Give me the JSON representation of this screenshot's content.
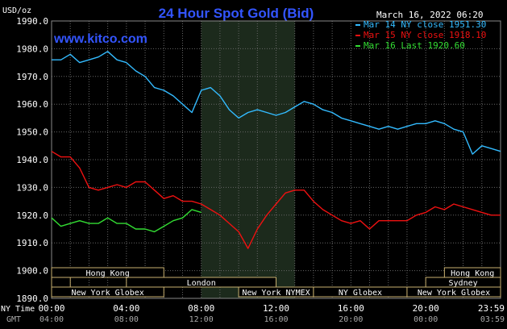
{
  "chart_data": {
    "type": "line",
    "title": "24 Hour Spot Gold (Bid)",
    "watermark": "www.kitco.com",
    "timestamp": "March 16, 2022 06:20",
    "y_unit": "USD/oz",
    "ylim": [
      1890,
      1990
    ],
    "y_ticks": [
      "1990.0",
      "1980.0",
      "1970.0",
      "1960.0",
      "1950.0",
      "1940.0",
      "1930.0",
      "1920.0",
      "1910.0",
      "1900.0",
      "1890.0"
    ],
    "x_row_label_ny": "NY Time",
    "x_row_label_gmt": "GMT",
    "ny_time_ticks": [
      "00:00",
      "04:00",
      "08:00",
      "12:00",
      "16:00",
      "20:00",
      "23:59"
    ],
    "gmt_ticks": [
      "04:00",
      "08:00",
      "12:00",
      "16:00",
      "20:00",
      "00:00",
      "03:59"
    ],
    "grid": true,
    "legend_position": "top-right",
    "colors": {
      "background": "#000000",
      "title": "#3355ff",
      "watermark": "#3355ff",
      "axis_text": "#ffffff",
      "grid": "#666666",
      "shade": "#1c2a1c",
      "session_text": "#ffffff",
      "session_border": "#c8b070"
    },
    "x_hours": [
      0.0,
      0.5,
      1.0,
      1.5,
      2.0,
      2.5,
      3.0,
      3.5,
      4.0,
      4.5,
      5.0,
      5.5,
      6.0,
      6.5,
      7.0,
      7.5,
      8.0,
      8.5,
      9.0,
      9.5,
      10.0,
      10.5,
      11.0,
      11.5,
      12.0,
      12.5,
      13.0,
      13.5,
      14.0,
      14.5,
      15.0,
      15.5,
      16.0,
      16.5,
      17.0,
      17.5,
      18.0,
      18.5,
      19.0,
      19.5,
      20.0,
      20.5,
      21.0,
      21.5,
      22.0,
      22.5,
      23.0,
      23.5,
      24.0
    ],
    "series": [
      {
        "name": "Mar 14 NY close 1951.30",
        "color": "#33bbff",
        "values": [
          1976,
          1976,
          1978,
          1975,
          1976,
          1977,
          1979,
          1976,
          1975,
          1972,
          1970,
          1966,
          1965,
          1963,
          1960,
          1957,
          1965,
          1966,
          1963,
          1958,
          1955,
          1957,
          1958,
          1957,
          1956,
          1957,
          1959,
          1961,
          1960,
          1958,
          1957,
          1955,
          1954,
          1953,
          1952,
          1951,
          1952,
          1951,
          1952,
          1953,
          1953,
          1954,
          1953,
          1951,
          1950,
          1942,
          1945,
          1944,
          1943
        ]
      },
      {
        "name": "Mar 15 NY close 1918.10",
        "color": "#ee1111",
        "values": [
          1943,
          1941,
          1941,
          1937,
          1930,
          1929,
          1930,
          1931,
          1930,
          1932,
          1932,
          1929,
          1926,
          1927,
          1925,
          1925,
          1924,
          1922,
          1920,
          1917,
          1914,
          1908,
          1915,
          1920,
          1924,
          1928,
          1929,
          1929,
          1925,
          1922,
          1920,
          1918,
          1917,
          1918,
          1915,
          1918,
          1918,
          1918,
          1918,
          1920,
          1921,
          1923,
          1922,
          1924,
          1923,
          1922,
          1921,
          1920,
          1920
        ]
      },
      {
        "name": "Mar 16 Last 1920.60",
        "color": "#33dd33",
        "values": [
          1919,
          1916,
          1917,
          1918,
          1917,
          1917,
          1919,
          1917,
          1917,
          1915,
          1915,
          1914,
          1916,
          1918,
          1919,
          1922,
          1921
        ]
      }
    ],
    "sessions": [
      {
        "label": "Hong Kong",
        "row": 0,
        "start": 0.0,
        "end": 6.0
      },
      {
        "label": "",
        "row": 1,
        "start": 0.0,
        "end": 1.0
      },
      {
        "label": "London",
        "row": 1,
        "start": 4.0,
        "end": 12.0
      },
      {
        "label": "New York Globex",
        "row": 2,
        "start": 0.0,
        "end": 6.0
      },
      {
        "label": "New York NYMEX",
        "row": 2,
        "start": 10.0,
        "end": 14.0
      },
      {
        "label": "NY Globex",
        "row": 2,
        "start": 14.0,
        "end": 19.0
      },
      {
        "label": "Hong Kong",
        "row": 0,
        "start": 21.0,
        "end": 24.0
      },
      {
        "label": "Sydney",
        "row": 1,
        "start": 20.0,
        "end": 24.0
      },
      {
        "label": "New York Globex",
        "row": 2,
        "start": 19.0,
        "end": 24.0
      }
    ],
    "shaded_hours": [
      8.0,
      13.0
    ]
  }
}
